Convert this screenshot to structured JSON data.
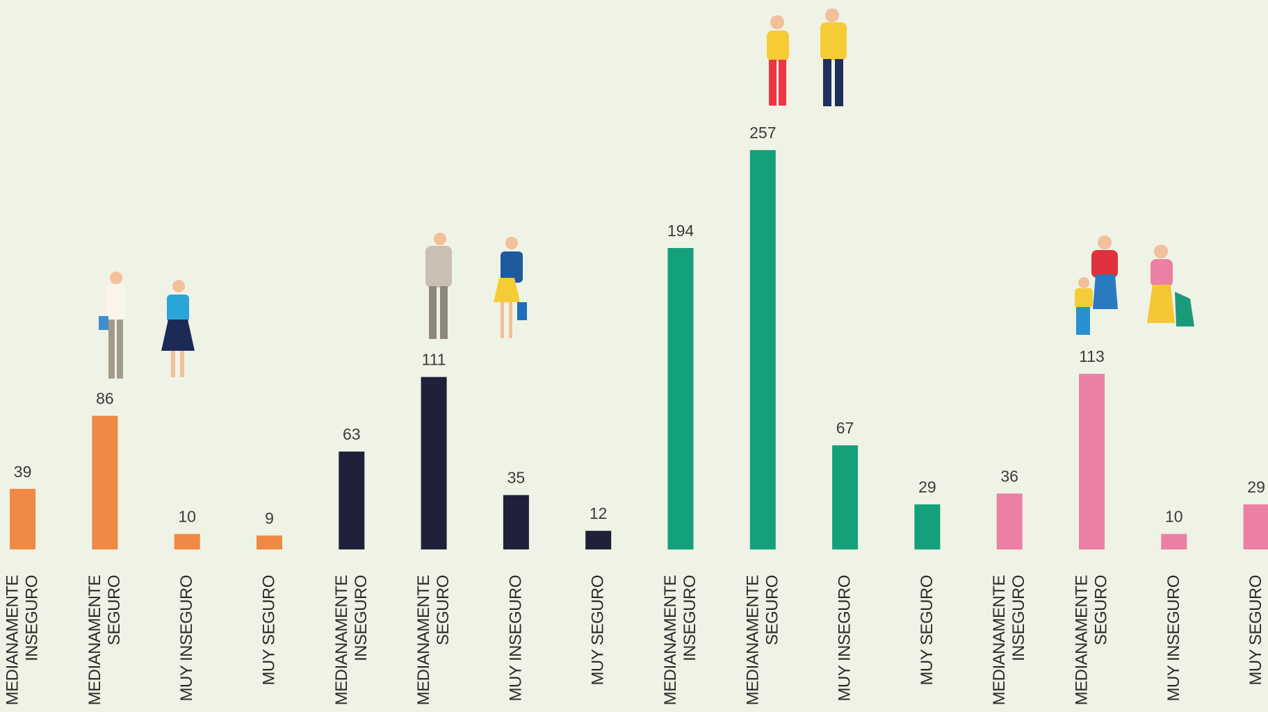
{
  "chart_data": {
    "type": "bar",
    "categories": [
      "MEDIANAMENTE INSEGURO",
      "MEDIANAMENTE SEGURO",
      "MUY INSEGURO",
      "MUY SEGURO",
      "MEDIANAMENTE INSEGURO",
      "MEDIANAMENTE SEGURO",
      "MUY INSEGURO",
      "MUY SEGURO",
      "MEDIANAMENTE INSEGURO",
      "MEDIANAMENTE SEGURO",
      "MUY INSEGURO",
      "MUY SEGURO",
      "MEDIANAMENTE INSEGURO",
      "MEDIANAMENTE SEGURO",
      "MUY INSEGURO",
      "MUY SEGURO"
    ],
    "values": [
      39,
      86,
      10,
      9,
      63,
      111,
      35,
      12,
      194,
      257,
      67,
      29,
      36,
      113,
      10,
      29
    ],
    "colors": [
      "#f08944",
      "#f08944",
      "#f08944",
      "#f08944",
      "#21203a",
      "#21203a",
      "#21203a",
      "#21203a",
      "#14a07a",
      "#14a07a",
      "#14a07a",
      "#14a07a",
      "#ec80a4",
      "#ec80a4",
      "#ec80a4",
      "#ec80a4"
    ]
  }
}
